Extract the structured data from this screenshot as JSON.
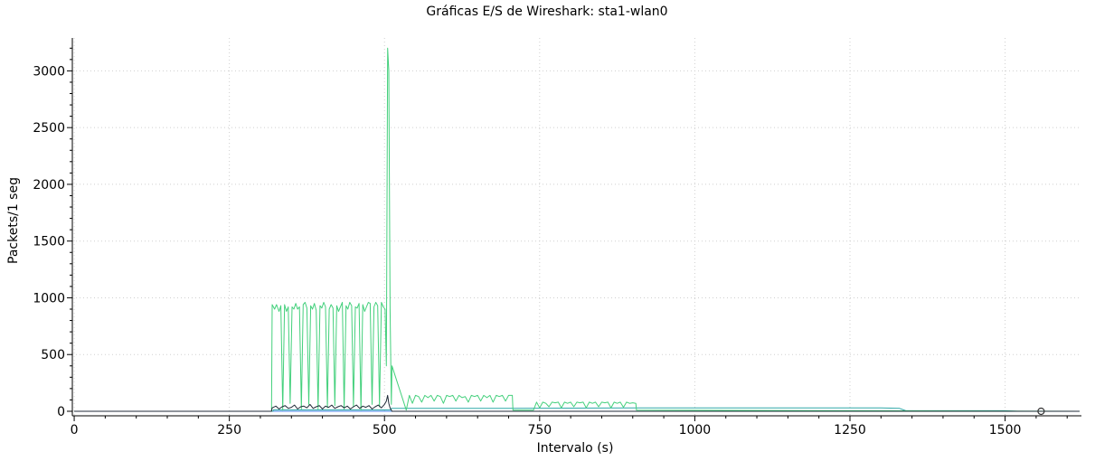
{
  "chart_data": {
    "type": "line",
    "title": "Gráficas E/S de Wireshark: sta1-wlan0",
    "xlabel": "Intervalo (s)",
    "ylabel": "Packets/1 seg",
    "xlim": [
      -3,
      1623
    ],
    "ylim": [
      -40,
      3290
    ],
    "xticks": [
      0,
      250,
      500,
      750,
      1000,
      1250,
      1500
    ],
    "yticks": [
      0,
      500,
      1000,
      1500,
      2000,
      2500,
      3000
    ],
    "x_tick_labels": [
      "0",
      "250",
      "500",
      "750",
      "1000",
      "1250",
      "1500"
    ],
    "y_tick_labels": [
      "0",
      "500",
      "1000",
      "1500",
      "2000",
      "2500",
      "3000"
    ],
    "grid": true,
    "colors": {
      "green": "#44d07c",
      "teal": "#2fa8a8",
      "dark": "#202b38",
      "blue": "#4a86e8",
      "marker": "#333333"
    },
    "series": [
      {
        "color": "#4a86e8",
        "x": [
          0,
          1620
        ],
        "y": [
          0,
          0
        ]
      },
      {
        "color": "#2fa8a8",
        "x": [
          0,
          320,
          321,
          510,
          511,
          540,
          600,
          700,
          900,
          1000,
          1100,
          1200,
          1300,
          1330,
          1340,
          1500,
          1520,
          1620
        ],
        "y": [
          0,
          0,
          12,
          12,
          25,
          25,
          25,
          25,
          30,
          30,
          30,
          30,
          30,
          25,
          5,
          5,
          0,
          0
        ]
      },
      {
        "color": "#44d07c",
        "x": [
          0,
          318,
          319,
          323,
          326,
          330,
          333,
          336,
          339,
          342,
          345,
          348,
          351,
          354,
          357,
          360,
          363,
          366,
          369,
          372,
          375,
          378,
          381,
          384,
          387,
          390,
          393,
          396,
          399,
          402,
          405,
          408,
          411,
          414,
          417,
          420,
          423,
          426,
          429,
          432,
          435,
          438,
          441,
          444,
          447,
          450,
          453,
          456,
          459,
          462,
          465,
          468,
          471,
          474,
          477,
          480,
          483,
          486,
          489,
          492,
          495,
          498,
          501,
          503,
          505,
          507,
          509,
          511,
          512,
          535,
          540,
          545,
          550,
          555,
          560,
          565,
          570,
          575,
          580,
          585,
          590,
          595,
          600,
          605,
          610,
          615,
          620,
          625,
          630,
          635,
          640,
          645,
          650,
          655,
          660,
          665,
          670,
          675,
          680,
          685,
          690,
          695,
          700,
          706,
          707,
          740,
          745,
          750,
          755,
          760,
          765,
          770,
          775,
          780,
          785,
          790,
          795,
          800,
          805,
          810,
          815,
          820,
          825,
          830,
          835,
          840,
          845,
          850,
          855,
          860,
          865,
          870,
          875,
          880,
          885,
          890,
          895,
          900,
          905,
          906,
          1620
        ],
        "y": [
          0,
          0,
          940,
          900,
          940,
          880,
          930,
          10,
          940,
          880,
          920,
          70,
          920,
          900,
          950,
          900,
          920,
          20,
          940,
          960,
          910,
          60,
          930,
          900,
          950,
          890,
          20,
          930,
          910,
          960,
          920,
          30,
          900,
          940,
          910,
          50,
          930,
          880,
          920,
          960,
          20,
          930,
          900,
          960,
          930,
          40,
          920,
          910,
          950,
          10,
          940,
          880,
          920,
          960,
          950,
          60,
          920,
          960,
          930,
          40,
          960,
          920,
          900,
          400,
          3200,
          3000,
          900,
          60,
          400,
          10,
          140,
          70,
          140,
          130,
          80,
          140,
          120,
          140,
          90,
          140,
          130,
          70,
          140,
          130,
          140,
          90,
          140,
          120,
          130,
          80,
          140,
          130,
          140,
          90,
          140,
          120,
          140,
          80,
          140,
          130,
          140,
          90,
          140,
          140,
          10,
          10,
          80,
          30,
          80,
          70,
          40,
          80,
          75,
          80,
          30,
          80,
          70,
          80,
          40,
          80,
          75,
          80,
          30,
          80,
          70,
          80,
          40,
          80,
          75,
          80,
          30,
          80,
          70,
          80,
          35,
          80,
          70,
          75,
          70,
          10,
          0
        ]
      },
      {
        "color": "#202b38",
        "x": [
          0,
          318,
          319,
          325,
          330,
          335,
          340,
          345,
          350,
          355,
          360,
          365,
          370,
          375,
          380,
          385,
          390,
          395,
          400,
          405,
          410,
          415,
          420,
          425,
          430,
          435,
          440,
          445,
          450,
          455,
          460,
          465,
          470,
          475,
          480,
          485,
          490,
          495,
          500,
          503,
          505,
          507,
          509,
          511,
          512,
          1620
        ],
        "y": [
          0,
          0,
          30,
          45,
          20,
          40,
          50,
          25,
          35,
          55,
          20,
          40,
          45,
          30,
          60,
          25,
          40,
          50,
          20,
          45,
          35,
          55,
          25,
          40,
          50,
          30,
          45,
          20,
          40,
          55,
          25,
          45,
          35,
          50,
          20,
          40,
          55,
          30,
          60,
          90,
          140,
          70,
          30,
          10,
          0,
          0
        ]
      }
    ],
    "end_marker": {
      "x": 1558,
      "y": 0
    }
  }
}
